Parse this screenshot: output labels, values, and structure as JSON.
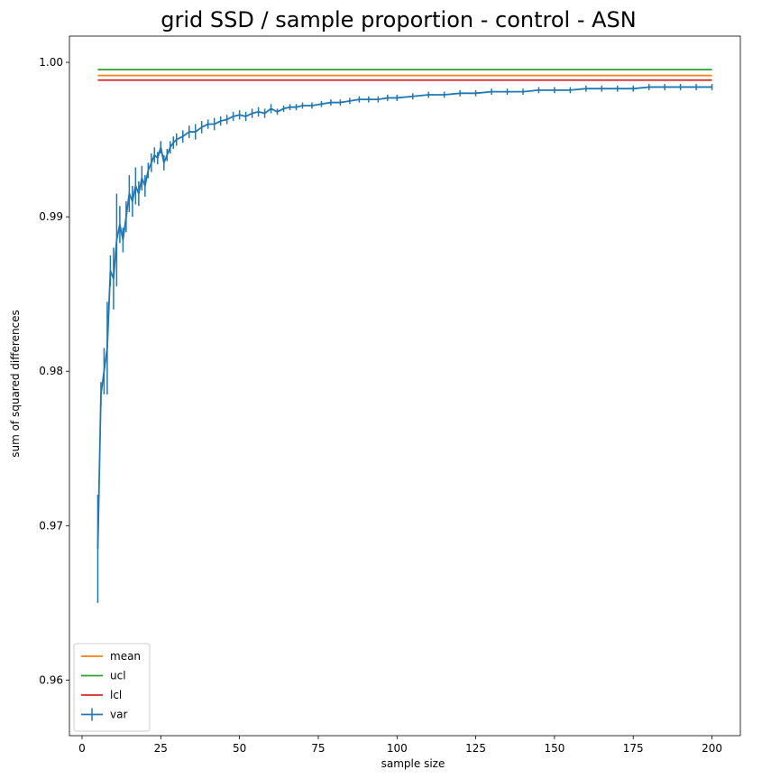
{
  "chart_data": {
    "type": "line",
    "title": "grid SSD / sample proportion - control - ASN",
    "xlabel": "sample size",
    "ylabel": "sum of squared differences",
    "xlim": [
      -4,
      209
    ],
    "ylim": [
      0.9564,
      1.0017
    ],
    "xticks": [
      0,
      25,
      50,
      75,
      100,
      125,
      150,
      175,
      200
    ],
    "yticks": [
      0.96,
      0.97,
      0.98,
      0.99,
      1.0
    ],
    "ytick_labels": [
      "0.96",
      "0.97",
      "0.98",
      "0.99",
      "1.00"
    ],
    "grid": false,
    "legend": {
      "placement": "lower-left",
      "entries": [
        "mean",
        "ucl",
        "lcl",
        "var"
      ]
    },
    "colors": {
      "mean": "#ff7f0e",
      "ucl": "#2ca02c",
      "lcl": "#d62728",
      "var": "#1f77b4"
    },
    "hlines": [
      {
        "name": "mean",
        "y": 0.99915,
        "xmin": 5,
        "xmax": 200
      },
      {
        "name": "ucl",
        "y": 0.99953,
        "xmin": 5,
        "xmax": 200
      },
      {
        "name": "lcl",
        "y": 0.99885,
        "xmin": 5,
        "xmax": 200
      }
    ],
    "series": [
      {
        "name": "var",
        "x": [
          5,
          6,
          7,
          8,
          9,
          10,
          11,
          12,
          13,
          14,
          15,
          16,
          17,
          18,
          19,
          20,
          21,
          22,
          23,
          24,
          25,
          26,
          27,
          28,
          29,
          30,
          32,
          34,
          36,
          38,
          40,
          42,
          44,
          46,
          48,
          50,
          52,
          54,
          56,
          58,
          60,
          62,
          64,
          66,
          68,
          70,
          73,
          76,
          79,
          82,
          85,
          88,
          91,
          94,
          97,
          100,
          105,
          110,
          115,
          120,
          125,
          130,
          135,
          140,
          145,
          150,
          155,
          160,
          165,
          170,
          175,
          180,
          185,
          190,
          195,
          200
        ],
        "values": [
          0.9685,
          0.9785,
          0.98,
          0.9815,
          0.9865,
          0.986,
          0.9885,
          0.9895,
          0.9885,
          0.99,
          0.9915,
          0.991,
          0.992,
          0.9915,
          0.9925,
          0.992,
          0.993,
          0.9935,
          0.994,
          0.9938,
          0.9945,
          0.9935,
          0.994,
          0.9945,
          0.9948,
          0.995,
          0.9952,
          0.9955,
          0.9955,
          0.9958,
          0.996,
          0.996,
          0.9962,
          0.9963,
          0.9965,
          0.9966,
          0.9965,
          0.9967,
          0.9968,
          0.9967,
          0.997,
          0.9968,
          0.997,
          0.9971,
          0.9971,
          0.9972,
          0.9972,
          0.9973,
          0.9974,
          0.9974,
          0.9975,
          0.9976,
          0.9976,
          0.9976,
          0.9977,
          0.9977,
          0.9978,
          0.9979,
          0.9979,
          0.998,
          0.998,
          0.9981,
          0.9981,
          0.9981,
          0.9982,
          0.9982,
          0.9982,
          0.9983,
          0.9983,
          0.9983,
          0.9983,
          0.9984,
          0.9984,
          0.9984,
          0.9984,
          0.9984
        ],
        "errors": [
          0.0035,
          0.0008,
          0.0015,
          0.003,
          0.001,
          0.002,
          0.003,
          0.0012,
          0.0008,
          0.001,
          0.0012,
          0.001,
          0.0012,
          0.0008,
          0.0008,
          0.0007,
          0.0005,
          0.0006,
          0.0005,
          0.0004,
          0.0004,
          0.0005,
          0.0004,
          0.0004,
          0.0004,
          0.0004,
          0.0004,
          0.0004,
          0.0005,
          0.0004,
          0.0003,
          0.0004,
          0.0003,
          0.0003,
          0.0003,
          0.0003,
          0.0003,
          0.0003,
          0.0003,
          0.0003,
          0.0003,
          0.0002,
          0.0002,
          0.0002,
          0.0002,
          0.0002,
          0.0002,
          0.0002,
          0.0002,
          0.0002,
          0.0002,
          0.0002,
          0.0002,
          0.0002,
          0.0002,
          0.0002,
          0.0002,
          0.0002,
          0.0002,
          0.0002,
          0.0002,
          0.0002,
          0.0002,
          0.0002,
          0.0002,
          0.0002,
          0.0002,
          0.0002,
          0.0002,
          0.0002,
          0.0002,
          0.0002,
          0.0002,
          0.0002,
          0.0002,
          0.0002
        ]
      }
    ]
  }
}
